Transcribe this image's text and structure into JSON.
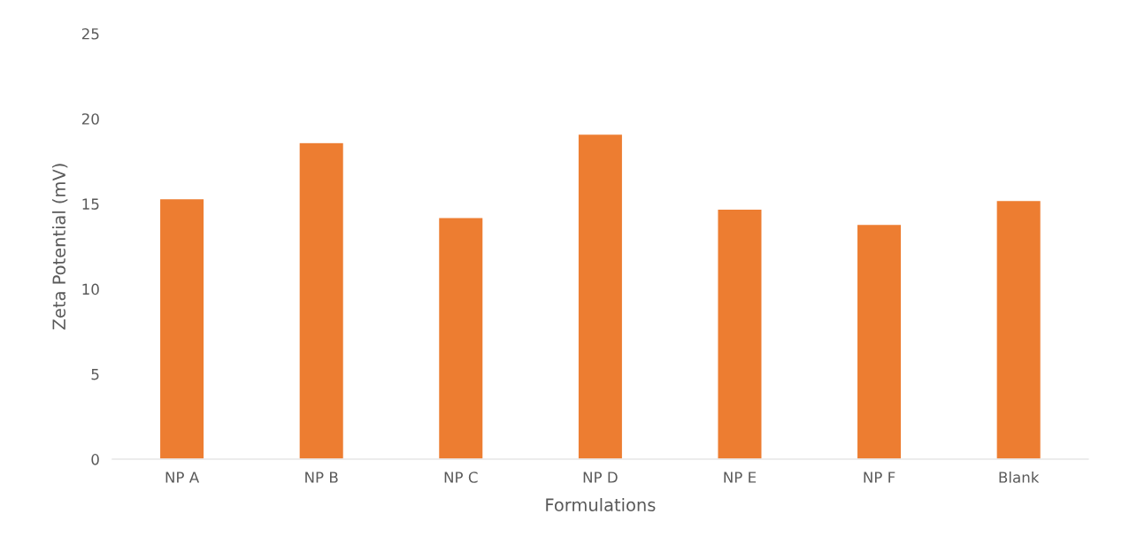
{
  "chart_data": {
    "type": "bar",
    "xlabel": "Formulations",
    "ylabel": "Zeta Potential (mV)",
    "categories": [
      "NP A",
      "NP B",
      "NP C",
      "NP D",
      "NP E",
      "NP F",
      "Blank"
    ],
    "values": [
      15.3,
      18.6,
      14.2,
      19.1,
      14.7,
      13.8,
      15.2
    ],
    "color": "#ed7d31",
    "ylim": [
      0,
      25
    ],
    "yticks": [
      0,
      5,
      10,
      15,
      20,
      25
    ],
    "grid": false,
    "legend": false
  }
}
